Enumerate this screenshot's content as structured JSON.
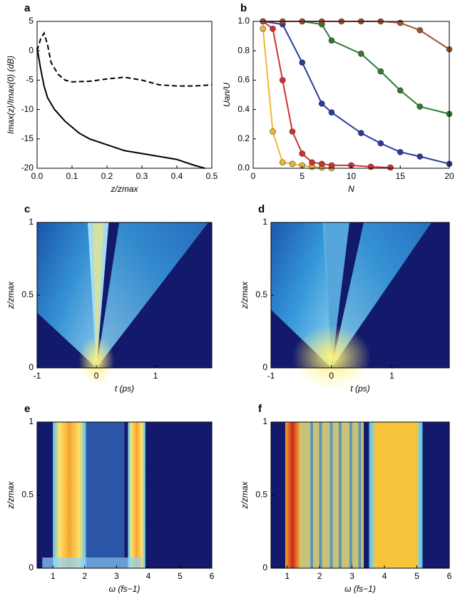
{
  "chart_data": [
    {
      "type": "line",
      "label": "a",
      "xlabel": "z/zmax",
      "ylabel": "Imax(z)/Imax(0) (dB)",
      "xlim": [
        0,
        0.5
      ],
      "xticks": [
        {
          "value": 0,
          "label": "0.0"
        },
        0.1,
        0.2,
        0.3,
        0.4,
        0.5
      ],
      "ylim": [
        -20,
        5
      ],
      "yticks": [
        -20,
        -15,
        -10,
        -5,
        0,
        5
      ],
      "series": [
        {
          "style": "solid",
          "color": "#000000",
          "x": [
            0,
            0.01,
            0.02,
            0.03,
            0.05,
            0.08,
            0.12,
            0.15,
            0.2,
            0.25,
            0.3,
            0.35,
            0.4,
            0.45,
            0.48
          ],
          "values": [
            0.5,
            -3,
            -6,
            -8,
            -10,
            -12,
            -14,
            -15,
            -16,
            -17,
            -17.5,
            -18,
            -18.5,
            -19.5,
            -20
          ]
        },
        {
          "style": "dashed",
          "color": "#000000",
          "x": [
            0,
            0.01,
            0.02,
            0.03,
            0.04,
            0.06,
            0.08,
            0.1,
            0.15,
            0.2,
            0.25,
            0.3,
            0.35,
            0.4,
            0.45,
            0.5
          ],
          "values": [
            0,
            2,
            3,
            1,
            -2,
            -4,
            -5,
            -5.3,
            -5.2,
            -4.8,
            -4.5,
            -5,
            -5.8,
            -6,
            -6,
            -5.8
          ]
        }
      ]
    },
    {
      "type": "line",
      "label": "b",
      "xlabel": "N",
      "ylabel": "Uan/U",
      "markers": true,
      "xlim": [
        0,
        20
      ],
      "xticks": [
        0,
        5,
        10,
        15,
        20
      ],
      "ylim": [
        0,
        1
      ],
      "yticks": [
        {
          "value": 0,
          "label": "0.0"
        },
        0.2,
        0.4,
        0.6,
        0.8,
        {
          "value": 1,
          "label": "1.0"
        }
      ],
      "series": [
        {
          "style": "solid",
          "color": "#f2b632",
          "x": [
            1,
            2,
            3,
            4,
            5,
            6,
            7,
            8
          ],
          "values": [
            0.95,
            0.25,
            0.04,
            0.03,
            0.02,
            0.01,
            0.005,
            0
          ]
        },
        {
          "style": "solid",
          "color": "#d32f2f",
          "x": [
            1,
            2,
            3,
            4,
            5,
            6,
            7,
            8,
            10,
            12,
            14
          ],
          "values": [
            1,
            0.95,
            0.6,
            0.25,
            0.1,
            0.04,
            0.03,
            0.02,
            0.02,
            0.01,
            0.005
          ]
        },
        {
          "style": "solid",
          "color": "#2b3a9e",
          "x": [
            1,
            3,
            5,
            7,
            8,
            11,
            13,
            15,
            17,
            20
          ],
          "values": [
            1,
            0.98,
            0.72,
            0.44,
            0.38,
            0.24,
            0.17,
            0.11,
            0.08,
            0.03
          ]
        },
        {
          "style": "solid",
          "color": "#2e7d32",
          "x": [
            1,
            5,
            7,
            8,
            11,
            13,
            15,
            17,
            20
          ],
          "values": [
            1,
            1,
            0.98,
            0.87,
            0.78,
            0.66,
            0.53,
            0.42,
            0.37
          ]
        },
        {
          "style": "solid",
          "color": "#a0522d",
          "x": [
            1,
            3,
            5,
            7,
            9,
            11,
            13,
            15,
            17,
            20
          ],
          "values": [
            1,
            1,
            1,
            1,
            1,
            1,
            1,
            0.99,
            0.94,
            0.81
          ]
        }
      ]
    },
    {
      "type": "image",
      "label": "c",
      "xlabel": "t (ps)",
      "ylabel": "z/zmax",
      "xlim": [
        -1,
        1.95
      ],
      "xticks": [
        -1,
        0,
        1
      ],
      "ylim": [
        0,
        1
      ],
      "yticks": [
        0,
        0.5,
        1
      ]
    },
    {
      "type": "image",
      "label": "d",
      "xlabel": "t (ps)",
      "ylabel": "z/zmax",
      "xlim": [
        -1,
        1.95
      ],
      "xticks": [
        -1,
        0,
        1
      ],
      "ylim": [
        0,
        1
      ],
      "yticks": [
        0,
        0.5,
        1
      ]
    },
    {
      "type": "image",
      "label": "e",
      "xlabel": "ω (fs−1)",
      "ylabel": "z/zmax",
      "xlim": [
        0.5,
        6
      ],
      "xticks": [
        1,
        2,
        3,
        4,
        5,
        6
      ],
      "ylim": [
        0,
        1
      ],
      "yticks": [
        0,
        0.5,
        1
      ]
    },
    {
      "type": "image",
      "label": "f",
      "xlabel": "ω (fs−1)",
      "ylabel": "z/zmax",
      "xlim": [
        0.5,
        6
      ],
      "xticks": [
        1,
        2,
        3,
        4,
        5,
        6
      ],
      "ylim": [
        0,
        1
      ],
      "yticks": [
        0,
        0.5,
        1
      ]
    }
  ]
}
